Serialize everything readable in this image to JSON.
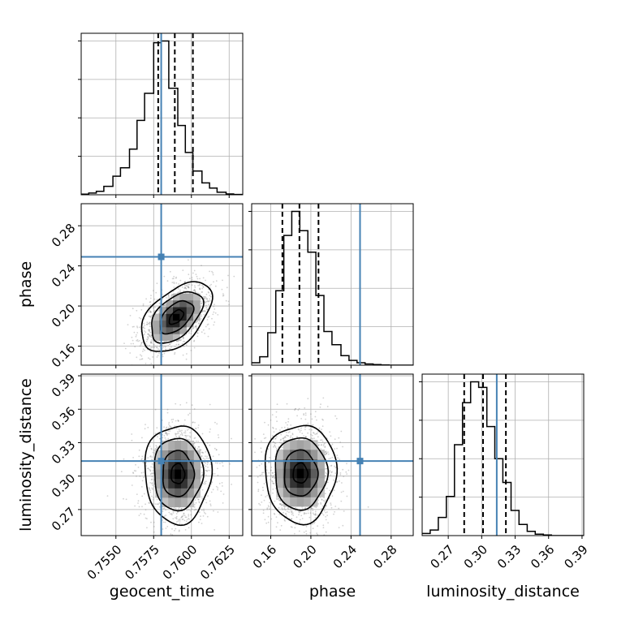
{
  "chart_data": {
    "type": "corner",
    "parameters": [
      "geocent_time",
      "phase",
      "luminosity_distance"
    ],
    "axis_titles": {
      "bottom": [
        "geocent_time",
        "phase",
        "luminosity_distance"
      ],
      "left": [
        "phase",
        "luminosity_distance"
      ]
    },
    "ranges": {
      "geocent_time": [
        0.7527,
        0.7634
      ],
      "phase": [
        0.141,
        0.302
      ],
      "luminosity_distance": [
        0.2466,
        0.3915
      ]
    },
    "ticks": {
      "geocent_time": {
        "values": [
          0.755,
          0.7575,
          0.76,
          0.7625
        ],
        "labels": [
          "0.7550",
          "0.7575",
          "0.7600",
          "0.7625"
        ]
      },
      "phase": {
        "values": [
          0.16,
          0.2,
          0.24,
          0.28
        ],
        "labels": [
          "0.16",
          "0.20",
          "0.24",
          "0.28"
        ]
      },
      "luminosity_distance": {
        "values": [
          0.27,
          0.3,
          0.33,
          0.36,
          0.39
        ],
        "labels": [
          "0.27",
          "0.30",
          "0.33",
          "0.36",
          "0.39"
        ]
      }
    },
    "truths": {
      "geocent_time": 0.758,
      "phase": 0.249,
      "luminosity_distance": 0.3135
    },
    "quantiles": {
      "geocent_time": [
        0.7578,
        0.7589,
        0.7601
      ],
      "phase": [
        0.1716,
        0.1886,
        0.2076
      ],
      "luminosity_distance": [
        0.2843,
        0.3012,
        0.3217
      ]
    },
    "histograms": {
      "geocent_time": {
        "edges": [
          0.7527,
          0.7532,
          0.7537,
          0.7542,
          0.7548,
          0.7553,
          0.7559,
          0.7564,
          0.7569,
          0.7575,
          0.758,
          0.7585,
          0.7591,
          0.7596,
          0.7601,
          0.7607,
          0.7612,
          0.7617,
          0.7623,
          0.7628,
          0.7634
        ],
        "counts": [
          0.4,
          1.0,
          2.0,
          5.0,
          11.0,
          16.0,
          27.0,
          44.0,
          60.0,
          90.0,
          91.0,
          63.0,
          41.0,
          25.0,
          14.0,
          7.0,
          4.0,
          1.5,
          0.5,
          0.2
        ]
      },
      "phase": {
        "edges": [
          0.141,
          0.149,
          0.157,
          0.165,
          0.173,
          0.181,
          0.189,
          0.197,
          0.205,
          0.213,
          0.221,
          0.23,
          0.238,
          0.246,
          0.254,
          0.262,
          0.27,
          0.278,
          0.286,
          0.294,
          0.302
        ],
        "counts": [
          2.0,
          7.0,
          27.0,
          62.0,
          108.0,
          128.0,
          112.0,
          94.0,
          58.0,
          28.0,
          17.0,
          8.0,
          4.0,
          2.0,
          1.0,
          0.5,
          0.2,
          0.0,
          0.0,
          0.0
        ]
      },
      "luminosity_distance": {
        "edges": [
          0.2466,
          0.2538,
          0.2611,
          0.2683,
          0.2756,
          0.2828,
          0.2901,
          0.2973,
          0.3046,
          0.3118,
          0.319,
          0.3263,
          0.3335,
          0.3408,
          0.348,
          0.3553,
          0.3625,
          0.3698,
          0.377,
          0.3843,
          0.3915
        ],
        "counts": [
          1.5,
          4.0,
          13.0,
          28.0,
          65.0,
          95.0,
          110.0,
          106.0,
          78.0,
          55.0,
          38.0,
          18.0,
          8.0,
          3.0,
          1.0,
          0.4,
          0.0,
          0.0,
          0.0,
          0.0
        ]
      }
    },
    "joint_distributions": [
      {
        "x": "geocent_time",
        "y": "phase",
        "center": [
          0.759,
          0.189
        ],
        "sd": [
          0.00095,
          0.0142
        ],
        "correlation": 0.5
      },
      {
        "x": "geocent_time",
        "y": "luminosity_distance",
        "center": [
          0.7591,
          0.302
        ],
        "sd": [
          0.0009,
          0.018
        ],
        "correlation": 0.0
      },
      {
        "x": "phase",
        "y": "luminosity_distance",
        "center": [
          0.1895,
          0.3025
        ],
        "sd": [
          0.0145,
          0.018
        ],
        "correlation": 0.0
      }
    ],
    "grid": true,
    "colors": {
      "line": "#000000",
      "quantile": "#000000",
      "truth": "#4682b4",
      "grid": "#b0b0b0",
      "scatter": "#7f7f7f"
    }
  }
}
